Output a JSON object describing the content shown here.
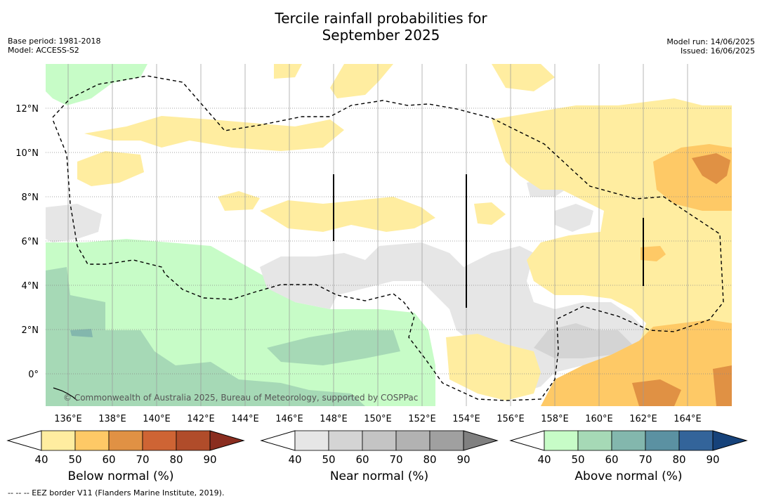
{
  "title_line1": "Tercile rainfall probabilities for",
  "title_line2": "September 2025",
  "meta": {
    "base_period": "Base period: 1981-2018",
    "model": "Model: ACCESS-S2",
    "model_run": "Model run: 14/06/2025",
    "issued": "Issued: 16/06/2025"
  },
  "map": {
    "x_ticks": [
      "136°E",
      "138°E",
      "140°E",
      "142°E",
      "144°E",
      "146°E",
      "148°E",
      "150°E",
      "152°E",
      "154°E",
      "156°E",
      "158°E",
      "160°E",
      "162°E",
      "164°E"
    ],
    "y_ticks": [
      "12°N",
      "10°N",
      "8°N",
      "6°N",
      "4°N",
      "2°N",
      "0°"
    ],
    "copyright": "© Commonwealth of Australia 2025, Bureau of Meteorology, supported by COSPPac"
  },
  "colorbars": [
    {
      "title": "Below normal (%)",
      "ticks": [
        "40",
        "50",
        "60",
        "70",
        "80",
        "90"
      ],
      "colors": [
        "#ffeda0",
        "#fec966",
        "#e09144",
        "#ce6434",
        "#b04c2a",
        "#8a2d1f"
      ]
    },
    {
      "title": "Near normal (%)",
      "ticks": [
        "40",
        "50",
        "60",
        "70",
        "80",
        "90"
      ],
      "colors": [
        "#e6e6e6",
        "#d4d4d4",
        "#c4c4c4",
        "#b2b2b2",
        "#a0a0a0",
        "#808080"
      ]
    },
    {
      "title": "Above normal (%)",
      "ticks": [
        "40",
        "50",
        "60",
        "70",
        "80",
        "90"
      ],
      "colors": [
        "#c7fcc7",
        "#a6d9b6",
        "#83b7ad",
        "#5b91a2",
        "#33649a",
        "#16427a"
      ]
    }
  ],
  "footnote": "--  --  -- EEZ border V11 (Flanders Marine Institute, 2019).",
  "colors": {
    "below_light": "#ffeda0",
    "below_mid": "#fec966",
    "below_dark": "#e09144",
    "near_light": "#e6e6e6",
    "near_mid": "#d4d4d4",
    "above_light": "#c7fcc7",
    "above_mid": "#a6d9b6"
  }
}
